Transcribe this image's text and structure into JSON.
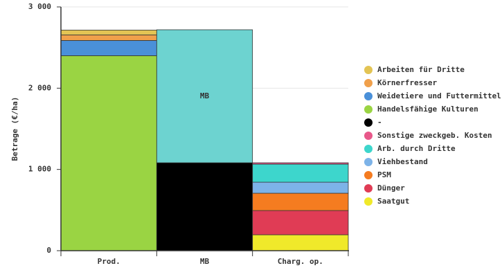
{
  "chart_data": {
    "type": "stacked_bar",
    "y_label": "Betrage (€/ha)",
    "categories": [
      "Prod.",
      "MB",
      "Charg. op."
    ],
    "ylim": [
      0,
      3000
    ],
    "yticks": [
      0,
      {
        "value": 1000,
        "label": "1 000"
      },
      {
        "value": 2000,
        "label": "2 000"
      },
      {
        "value": 3000,
        "label": "3 000"
      }
    ],
    "grid": true,
    "legend": "right",
    "series": [
      {
        "name": "Saatgut",
        "color": "#f0e92a",
        "values": [
          null,
          null,
          196
        ]
      },
      {
        "name": "Dünger",
        "color": "#e03c55",
        "values": [
          null,
          null,
          298
        ]
      },
      {
        "name": "PSM",
        "color": "#f57c20",
        "values": [
          null,
          null,
          213
        ]
      },
      {
        "name": "Viehbestand",
        "color": "#7db3e8",
        "values": [
          null,
          null,
          136
        ]
      },
      {
        "name": "Arb. durch Dritte",
        "color": "#3dd6cc",
        "values": [
          null,
          null,
          222
        ]
      },
      {
        "name": "Sonstige zweckgeb. Kosten",
        "color": "#e8588a",
        "values": [
          null,
          null,
          17
        ]
      },
      {
        "name": "-",
        "color": "#000000",
        "values": [
          null,
          1082,
          null
        ]
      },
      {
        "name": "Handelsfähige Kulturen",
        "color": "#9ad443",
        "values": [
          2400,
          null,
          null
        ]
      },
      {
        "name": "Weidetiere und Futtermittel",
        "color": "#4a90d9",
        "values": [
          187,
          null,
          null
        ]
      },
      {
        "name": "Körnerfresser",
        "color": "#f0a04b",
        "values": [
          68,
          null,
          null
        ]
      },
      {
        "name": "Arbeiten für Dritte",
        "color": "#e3c454",
        "values": [
          60,
          null,
          null
        ]
      },
      {
        "name": "MB",
        "color": "#6dd3d0",
        "values": [
          null,
          1637,
          null
        ],
        "legend": false,
        "label_inside": true
      }
    ]
  }
}
